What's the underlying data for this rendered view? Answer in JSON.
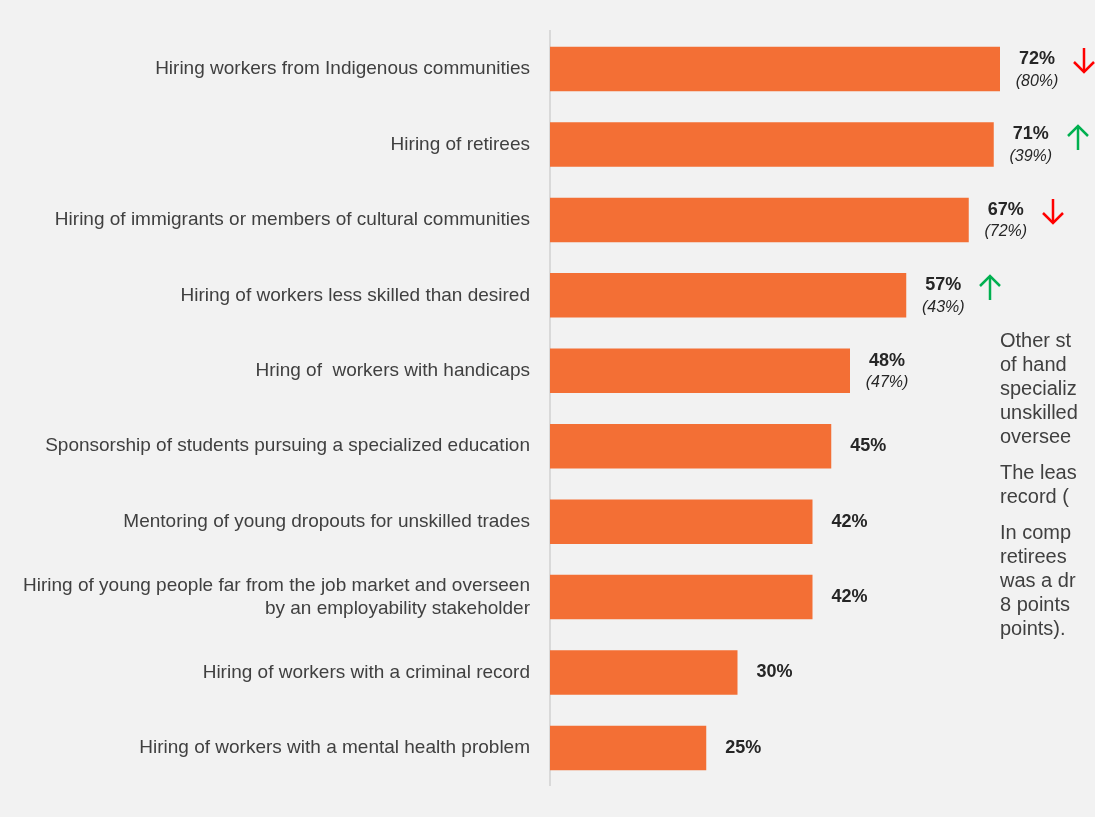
{
  "chart_data": {
    "type": "bar",
    "orientation": "horizontal",
    "categories": [
      "Hiring workers from Indigenous communities",
      "Hiring of retirees",
      "Hiring of immigrants or members of cultural communities",
      "Hiring of workers less skilled than desired",
      "Hring of  workers with handicaps",
      "Sponsorship of students pursuing a specialized education",
      "Mentoring of young dropouts for unskilled trades",
      "Hiring of young people far from the job market and overseen by an employability stakeholder",
      "Hiring of workers with a criminal record",
      "Hiring of workers with a mental health problem"
    ],
    "values": [
      72,
      71,
      67,
      57,
      48,
      45,
      42,
      42,
      30,
      25
    ],
    "value_labels": [
      "72%",
      "71%",
      "67%",
      "57%",
      "48%",
      "45%",
      "42%",
      "42%",
      "30%",
      "25%"
    ],
    "color": "#f36f35",
    "xlim": [
      0,
      87.2
    ],
    "tick_labels": "y",
    "legend": false,
    "annotations": [
      {
        "text": "(80%)",
        "x": 72,
        "y": "Hiring workers from Indigenous communities"
      },
      {
        "text": "(39%)",
        "x": 71,
        "y": "Hiring of retirees"
      },
      {
        "text": "(72%)",
        "x": 67,
        "y": "Hiring of immigrants or members of cultural communities"
      },
      {
        "text": "(43%)",
        "x": 57,
        "y": "Hiring of workers less skilled than desired"
      },
      {
        "text": "(47%)",
        "x": 48,
        "y": "Hring of  workers with handicaps"
      },
      "Other st\nof hand\nspecializ\nunskilled\noversee",
      "The leas\nrecord (",
      "In comp\nretirees\nwas a dr\n8 points\npoints)."
    ]
  }
}
